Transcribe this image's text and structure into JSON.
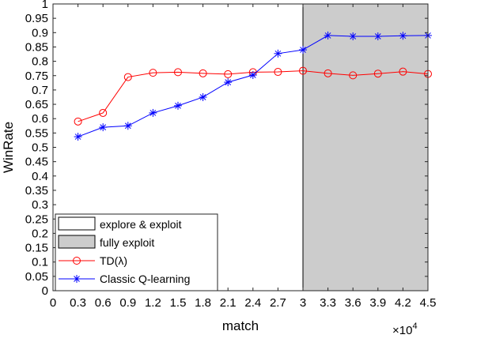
{
  "chart_data": {
    "type": "line",
    "xlabel": "match",
    "ylabel": "WinRate",
    "x_multiplier_label": "×10",
    "x_multiplier_exponent": "4",
    "xlim": [
      0,
      4.5
    ],
    "ylim": [
      0,
      1
    ],
    "x_ticks": [
      0,
      0.3,
      0.6,
      0.9,
      1.2,
      1.5,
      1.8,
      2.1,
      2.4,
      2.7,
      3,
      3.3,
      3.6,
      3.9,
      4.2,
      4.5
    ],
    "x_tick_labels": [
      "0",
      "0.3",
      "0.6",
      "0.9",
      "1.2",
      "1.5",
      "1.8",
      "2.1",
      "2.4",
      "2.7",
      "3",
      "3.3",
      "3.6",
      "3.9",
      "4.2",
      "4.5"
    ],
    "y_ticks": [
      0,
      0.05,
      0.1,
      0.15,
      0.2,
      0.25,
      0.3,
      0.35,
      0.4,
      0.45,
      0.5,
      0.55,
      0.6,
      0.65,
      0.7,
      0.75,
      0.8,
      0.85,
      0.9,
      0.95,
      1
    ],
    "y_tick_labels": [
      "0",
      "0.05",
      "0.1",
      "0.15",
      "0.2",
      "0.25",
      "0.3",
      "0.35",
      "0.4",
      "0.45",
      "0.5",
      "0.55",
      "0.6",
      "0.65",
      "0.7",
      "0.75",
      "0.8",
      "0.85",
      "0.9",
      "0.95",
      "1"
    ],
    "regions": [
      {
        "name": "explore & exploit",
        "x_range": [
          0,
          3
        ],
        "color": "#ffffff"
      },
      {
        "name": "fully exploit",
        "x_range": [
          3,
          4.5
        ],
        "color": "#cccccc"
      }
    ],
    "series": [
      {
        "name": "TD(λ)",
        "color": "#ff0000",
        "marker": "circle",
        "x": [
          0.3,
          0.6,
          0.9,
          1.2,
          1.5,
          1.8,
          2.1,
          2.4,
          2.7,
          3,
          3.3,
          3.6,
          3.9,
          4.2,
          4.5
        ],
        "values": [
          0.59,
          0.62,
          0.745,
          0.76,
          0.762,
          0.758,
          0.755,
          0.762,
          0.763,
          0.767,
          0.758,
          0.751,
          0.757,
          0.764,
          0.756
        ]
      },
      {
        "name": "Classic Q-learning",
        "color": "#0000ff",
        "marker": "star",
        "x": [
          0.3,
          0.6,
          0.9,
          1.2,
          1.5,
          1.8,
          2.1,
          2.4,
          2.7,
          3,
          3.3,
          3.6,
          3.9,
          4.2,
          4.5
        ],
        "values": [
          0.537,
          0.57,
          0.575,
          0.62,
          0.645,
          0.675,
          0.727,
          0.752,
          0.827,
          0.84,
          0.89,
          0.887,
          0.887,
          0.889,
          0.89
        ]
      }
    ],
    "legend_position": "bottom-left",
    "grid": false
  }
}
